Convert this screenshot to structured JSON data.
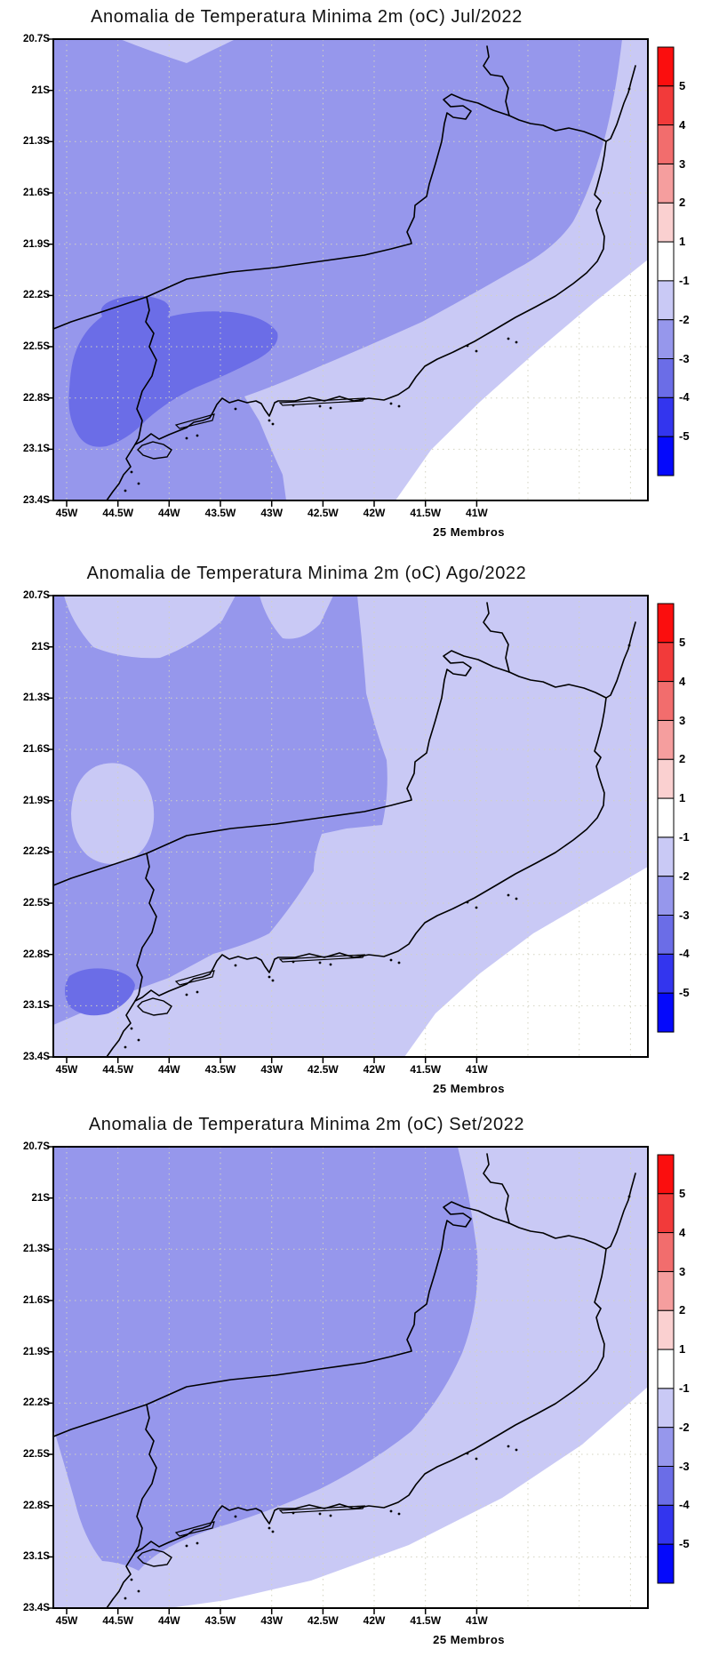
{
  "figure": {
    "background": "#ffffff",
    "grid_color": "#d3d3c0",
    "outline_color": "#000000"
  },
  "panels": [
    {
      "title": "Anomalia de Temperatura Minima 2m (oC) Jul/2022",
      "members": "25 Membros"
    },
    {
      "title": "Anomalia de Temperatura Minima 2m (oC) Ago/2022",
      "members": "25 Membros"
    },
    {
      "title": "Anomalia de Temperatura Minima 2m (oC) Set/2022",
      "members": "25 Membros"
    }
  ],
  "axes": {
    "lat": [
      "20.7S",
      "21S",
      "21.3S",
      "21.6S",
      "21.9S",
      "22.2S",
      "22.5S",
      "22.8S",
      "23.1S",
      "23.4S"
    ],
    "lon": [
      "45W",
      "44.5W",
      "44W",
      "43.5W",
      "43W",
      "42.5W",
      "42W",
      "41.5W",
      "41W"
    ]
  },
  "colorbar": {
    "labels": [
      "5",
      "4",
      "3",
      "2",
      "1",
      "-1",
      "-2",
      "-3",
      "-4",
      "-5"
    ],
    "colors": [
      "#fb0e0e",
      "#f23a3a",
      "#f26d6d",
      "#f59e9e",
      "#fad0d0",
      "#ffffff",
      "#c9c9f5",
      "#9697ec",
      "#6b6de7",
      "#3335ee",
      "#0509fb"
    ],
    "levels_description": "anomaly (oC) color scale from +5 (red) to -5 (blue)"
  },
  "map_levels": {
    "above_-1": "#ffffff",
    "-1_to_-2": "#c9c9f5",
    "-2_to_-3": "#9697ec",
    "-3_to_-4": "#6b6de7"
  }
}
